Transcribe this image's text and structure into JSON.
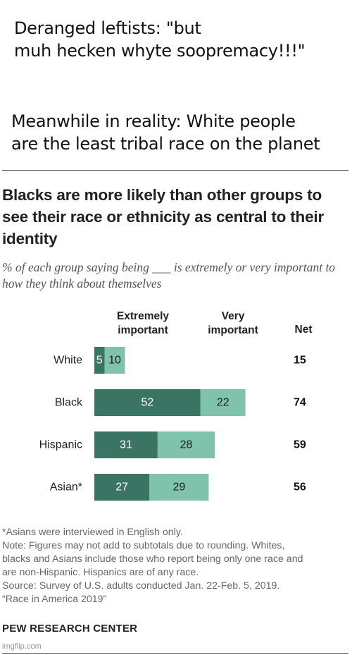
{
  "meme": {
    "top_text": "Deranged leftists: \"but\nmuh hecken whyte soopremacy!!!\"",
    "bottom_text": "Meanwhile in reality: White people\nare the least tribal race on the planet"
  },
  "chart_data": {
    "type": "bar",
    "stacked": true,
    "orientation": "horizontal",
    "title": "Blacks are more likely than other groups to see their race or ethnicity as central to their identity",
    "subtitle": "% of each group saying being ___ is extremely or very important to how they think about themselves",
    "categories": [
      "White",
      "Black",
      "Hispanic",
      "Asian*"
    ],
    "series": [
      {
        "name": "Extremely important",
        "values": [
          5,
          52,
          31,
          27
        ],
        "color": "#3a7563"
      },
      {
        "name": "Very important",
        "values": [
          10,
          22,
          28,
          29
        ],
        "color": "#7fc3ad"
      }
    ],
    "net_label": "Net",
    "net": [
      15,
      74,
      59,
      56
    ],
    "xlim": [
      0,
      80
    ],
    "grid": false,
    "legend": "top (column headers)"
  },
  "notes": "*Asians were interviewed in English only.\nNote: Figures may not add to subtotals due to rounding. Whites,\nblacks and Asians include those who report being only one race and\nare non-Hispanic. Hispanics are of any race.\nSource: Survey of U.S. adults conducted Jan. 22-Feb. 5, 2019.\n“Race in America 2019”",
  "brand": "PEW RESEARCH CENTER",
  "watermark": "imgflip.com"
}
